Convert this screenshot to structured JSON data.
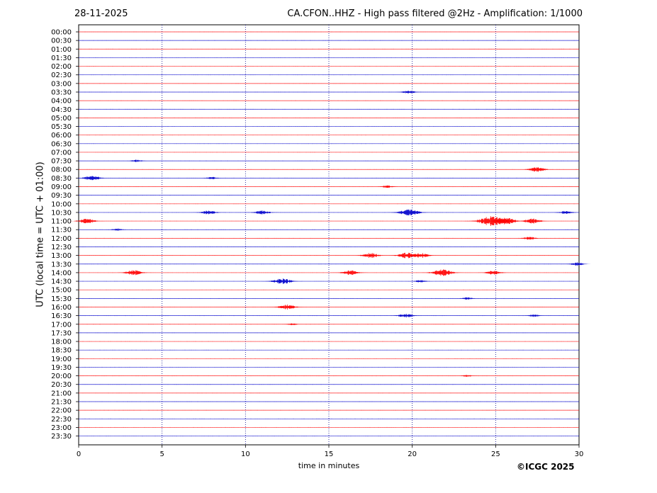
{
  "header": {
    "date": "28-11-2025",
    "title": "CA.CFON..HHZ - High pass filtered @2Hz - Amplification: 1/1000"
  },
  "footer": {
    "copyright": "©ICGC 2025"
  },
  "colors": {
    "red": "#ff0000",
    "blue": "#0000cc",
    "grid": "#00008b"
  },
  "chart_data": {
    "type": "line",
    "title": "CA.CFON..HHZ - High pass filtered @2Hz - Amplification: 1/1000",
    "xlabel": "time in minutes",
    "ylabel": "UTC (local time = UTC + 01:00)",
    "xlim": [
      0,
      30
    ],
    "x_ticks": [
      0,
      5,
      10,
      15,
      20,
      25,
      30
    ],
    "grid": "vertical dotted lines at every 5 minutes",
    "rows": [
      "00:00",
      "00:30",
      "01:00",
      "01:30",
      "02:00",
      "02:30",
      "03:00",
      "03:30",
      "04:00",
      "04:30",
      "05:00",
      "05:30",
      "06:00",
      "06:30",
      "07:00",
      "07:30",
      "08:00",
      "08:30",
      "09:00",
      "09:30",
      "10:00",
      "10:30",
      "11:00",
      "11:30",
      "12:00",
      "12:30",
      "13:00",
      "13:30",
      "14:00",
      "14:30",
      "15:00",
      "15:30",
      "16:00",
      "16:30",
      "17:00",
      "17:30",
      "18:00",
      "18:30",
      "19:00",
      "19:30",
      "20:00",
      "20:30",
      "21:00",
      "21:30",
      "22:00",
      "22:30",
      "23:00",
      "23:30"
    ],
    "row_colors": "alternating red (even rows) and blue (odd rows)",
    "events": [
      {
        "row": "03:30",
        "minute": 19.8,
        "amp": 2
      },
      {
        "row": "07:30",
        "minute": 3.5,
        "amp": 1.5
      },
      {
        "row": "08:00",
        "minute": 27.5,
        "amp": 3
      },
      {
        "row": "08:30",
        "minute": 0.8,
        "amp": 3
      },
      {
        "row": "08:30",
        "minute": 8.0,
        "amp": 1.5
      },
      {
        "row": "09:00",
        "minute": 18.5,
        "amp": 1.5
      },
      {
        "row": "10:30",
        "minute": 7.8,
        "amp": 2.5
      },
      {
        "row": "10:30",
        "minute": 11.0,
        "amp": 2.5
      },
      {
        "row": "10:30",
        "minute": 19.8,
        "amp": 4
      },
      {
        "row": "10:30",
        "minute": 29.2,
        "amp": 2
      },
      {
        "row": "11:00",
        "minute": 0.5,
        "amp": 3
      },
      {
        "row": "11:00",
        "minute": 24.8,
        "amp": 6
      },
      {
        "row": "11:00",
        "minute": 25.6,
        "amp": 4
      },
      {
        "row": "11:00",
        "minute": 27.2,
        "amp": 3
      },
      {
        "row": "11:30",
        "minute": 2.3,
        "amp": 1.5
      },
      {
        "row": "12:00",
        "minute": 27.0,
        "amp": 2
      },
      {
        "row": "13:00",
        "minute": 17.5,
        "amp": 3
      },
      {
        "row": "13:00",
        "minute": 19.7,
        "amp": 3.5
      },
      {
        "row": "13:00",
        "minute": 20.5,
        "amp": 3
      },
      {
        "row": "13:30",
        "minute": 29.9,
        "amp": 2
      },
      {
        "row": "14:00",
        "minute": 3.3,
        "amp": 3
      },
      {
        "row": "14:00",
        "minute": 16.3,
        "amp": 3
      },
      {
        "row": "14:00",
        "minute": 21.8,
        "amp": 4
      },
      {
        "row": "14:00",
        "minute": 24.9,
        "amp": 2.5
      },
      {
        "row": "14:30",
        "minute": 12.2,
        "amp": 3.5
      },
      {
        "row": "14:30",
        "minute": 20.5,
        "amp": 1.5
      },
      {
        "row": "15:30",
        "minute": 23.3,
        "amp": 1.5
      },
      {
        "row": "16:00",
        "minute": 12.5,
        "amp": 3
      },
      {
        "row": "16:30",
        "minute": 19.6,
        "amp": 2.5
      },
      {
        "row": "16:30",
        "minute": 27.3,
        "amp": 1.5
      },
      {
        "row": "17:00",
        "minute": 12.8,
        "amp": 1.2
      },
      {
        "row": "20:00",
        "minute": 23.3,
        "amp": 1.2
      }
    ]
  }
}
